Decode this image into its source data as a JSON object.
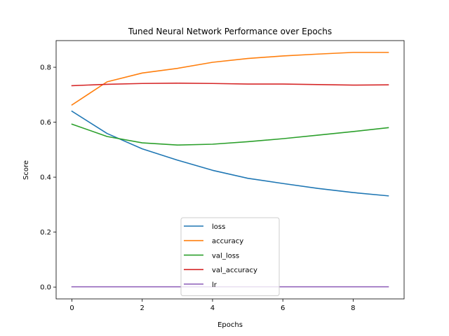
{
  "chart_data": {
    "type": "line",
    "title": "Tuned Neural Network Performance over Epochs",
    "xlabel": "Epochs",
    "ylabel": "Score",
    "x": [
      0,
      1,
      2,
      3,
      4,
      5,
      6,
      7,
      8,
      9
    ],
    "xlim": [
      -0.45,
      9.45
    ],
    "ylim": [
      -0.043,
      0.897
    ],
    "xticks": [
      0,
      2,
      4,
      6,
      8
    ],
    "yticks": [
      0.0,
      0.2,
      0.4,
      0.6,
      0.8
    ],
    "ytick_labels": [
      "0.0",
      "0.2",
      "0.4",
      "0.6",
      "0.8"
    ],
    "xtick_labels": [
      "0",
      "2",
      "4",
      "6",
      "8"
    ],
    "grid": false,
    "legend_position": "lower-center",
    "series": [
      {
        "name": "loss",
        "color": "#1f77b4",
        "values": [
          0.64,
          0.559,
          0.503,
          0.462,
          0.425,
          0.396,
          0.377,
          0.359,
          0.344,
          0.332
        ]
      },
      {
        "name": "accuracy",
        "color": "#ff7f0e",
        "values": [
          0.663,
          0.747,
          0.779,
          0.796,
          0.818,
          0.832,
          0.841,
          0.848,
          0.854,
          0.854
        ]
      },
      {
        "name": "val_loss",
        "color": "#2ca02c",
        "values": [
          0.593,
          0.548,
          0.525,
          0.517,
          0.52,
          0.529,
          0.54,
          0.553,
          0.566,
          0.58
        ]
      },
      {
        "name": "val_accuracy",
        "color": "#d62728",
        "values": [
          0.733,
          0.738,
          0.741,
          0.742,
          0.741,
          0.739,
          0.739,
          0.737,
          0.735,
          0.736
        ]
      },
      {
        "name": "lr",
        "color": "#9467bd",
        "values": [
          0.001,
          0.001,
          0.001,
          0.001,
          0.001,
          0.001,
          0.001,
          0.001,
          0.001,
          0.001
        ]
      }
    ]
  }
}
